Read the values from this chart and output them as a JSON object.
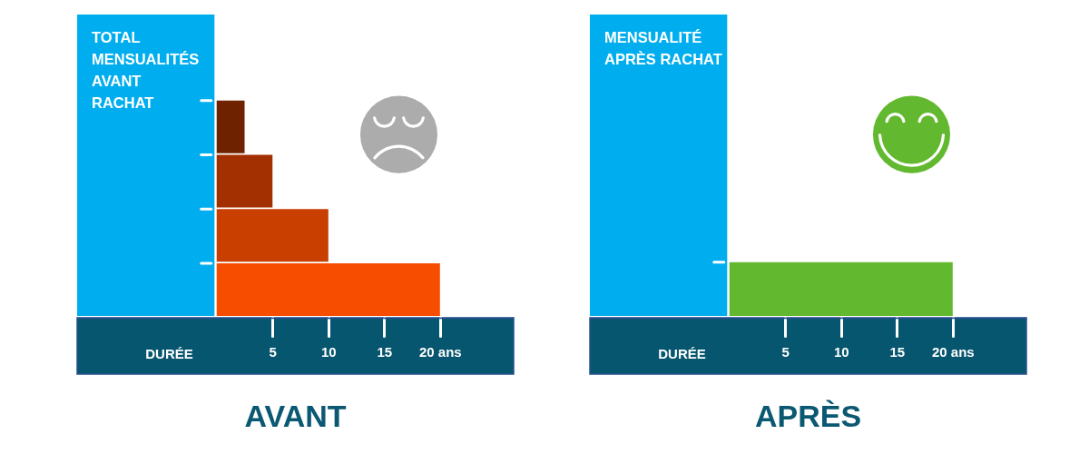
{
  "chart_data": [
    {
      "type": "bar",
      "orientation": "horizontal",
      "title": "AVANT",
      "xlabel": "DURÉE",
      "categories": [
        null,
        null,
        null,
        null
      ],
      "values": [
        2.5,
        5,
        10,
        20
      ],
      "colors": [
        "#6e2200",
        "#a33000",
        "#c83f00",
        "#f74d00"
      ],
      "xlim": [
        -12.5,
        26.6
      ],
      "xticks": [
        5,
        10,
        15,
        {
          "value": 20,
          "label": "20 ans"
        }
      ],
      "bands": [
        {
          "axis": "x",
          "from": -12.5,
          "to": -0.2,
          "label": "TOTAL\nMENSUALITÉS\nAVANT\nRACHAT",
          "color": "#00aeef"
        }
      ],
      "tick_labels": "x"
    },
    {
      "type": "bar",
      "orientation": "horizontal",
      "title": "APRÈS",
      "xlabel": "DURÉE",
      "categories": [
        null
      ],
      "values": [
        20
      ],
      "colors": [
        "#62b92f"
      ],
      "xlim": [
        -12.5,
        26.6
      ],
      "xticks": [
        5,
        10,
        15,
        {
          "value": 20,
          "label": "20 ans"
        }
      ],
      "bands": [
        {
          "axis": "x",
          "from": -12.5,
          "to": -0.2,
          "label": "MENSUALITÉ\nAPRÈS RACHAT",
          "color": "#00aeef"
        }
      ],
      "tick_labels": "x"
    }
  ]
}
